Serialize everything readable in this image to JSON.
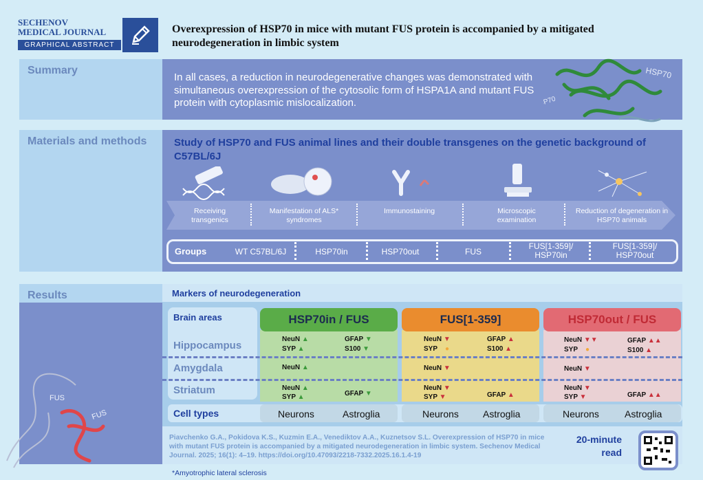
{
  "header": {
    "logo_line1": "SECHENOV",
    "logo_line2": "MEDICAL JOURNAL",
    "logo_sub": "GRAPHICAL ABSTRACT",
    "title": "Overexpression of HSP70 in mice with mutant FUS protein is accompanied by a mitigated neurodegeneration in limbic system"
  },
  "summary": {
    "label": "Summary",
    "text": "In all cases, a reduction in neurodegenerative changes was demonstrated with simultaneous overexpression of the cytosolic form of HSPA1A and mutant FUS protein with cytoplasmic mislocalization.",
    "protein_label": "HSP70",
    "protein_label2": "HSP70"
  },
  "methods": {
    "label": "Materials and methods",
    "heading": "Study of HSP70 and FUS animal lines and their double transgenes on the genetic background of C57BL/6J",
    "steps": [
      "Receiving transgenics",
      "Manifestation of ALS* syndromes",
      "Immunostaining",
      "Microscopic examination",
      "Reduction of degeneration in HSP70 animals"
    ],
    "groups_label": "Groups",
    "groups": [
      "WT C57BL/6J",
      "HSP70in",
      "HSP70out",
      "FUS",
      "FUS[1-359]/ HSP70in",
      "FUS[1-359]/ HSP70out"
    ]
  },
  "results": {
    "label": "Results",
    "markers_title": "Markers of neurodegeneration",
    "brain_areas_title": "Brain areas",
    "areas": [
      "Hippocampus",
      "Amygdala",
      "Striatum"
    ],
    "cell_types_title": "Cell types",
    "columns": [
      {
        "title": "HSP70in / FUS",
        "color": "#5aac48",
        "bg": "#b8dca6",
        "hipp_left": [
          "NeuN",
          "SYP"
        ],
        "hipp_right": [
          "GFAP",
          "S100"
        ],
        "amyg_left": [
          "NeuN"
        ],
        "stri_left": [
          "NeuN",
          "SYP"
        ],
        "stri_right": [
          "GFAP"
        ],
        "cells": [
          "Neurons",
          "Astroglia"
        ]
      },
      {
        "title": "FUS[1-359]",
        "color": "#ea8c2e",
        "bg": "#ead98a",
        "hipp_left": [
          "NeuN",
          "SYP"
        ],
        "hipp_right": [
          "GFAP",
          "S100"
        ],
        "amyg_left": [
          "NeuN"
        ],
        "stri_left": [
          "NeuN",
          "SYP"
        ],
        "stri_right": [
          "GFAP"
        ],
        "cells": [
          "Neurons",
          "Astroglia"
        ]
      },
      {
        "title": "HSP70out / FUS",
        "color": "#d8394a",
        "bg": "#ead1d4",
        "hipp_left": [
          "NeuN",
          "SYP"
        ],
        "hipp_right": [
          "GFAP",
          "S100"
        ],
        "amyg_left": [
          "NeuN"
        ],
        "stri_left": [
          "NeuN",
          "SYP"
        ],
        "stri_right": [
          "GFAP"
        ],
        "cells": [
          "Neurons",
          "Astroglia"
        ]
      }
    ],
    "fus_label1": "FUS",
    "fus_label2": "FUS"
  },
  "footer": {
    "citation": "Piavchenko G.A., Pokidova K.S., Kuzmin E.A., Venediktov A.A., Kuznetsov S.L. Overexpression of HSP70 in mice with mutant FUS protein is accompanied by a mitigated neurodegeneration in limbic system. Sechenov Medical Journal. 2025; 16(1): 4–19. https://doi.org/10.47093/2218-7332.2025.16.1.4-19",
    "read_time": "20-minute read",
    "footnote": "*Amyotrophic lateral sclerosis"
  }
}
